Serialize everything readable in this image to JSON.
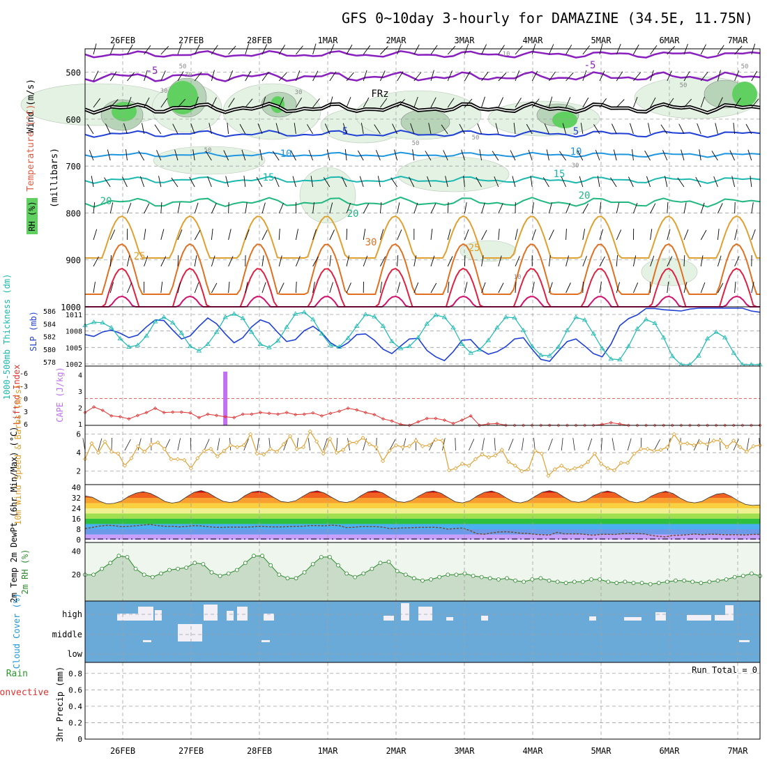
{
  "title": "GFS 0~10day 3-hourly for DAMAZINE (34.5E, 11.75N)",
  "date_labels": [
    "26FEB",
    "27FEB",
    "28FEB",
    "1MAR",
    "2MAR",
    "3MAR",
    "4MAR",
    "5MAR",
    "6MAR",
    "7MAR"
  ],
  "colors": {
    "purple": "#8a1fbf",
    "blue": "#1e3fd6",
    "sky": "#1e96e0",
    "teal": "#1ab8b0",
    "green_teal": "#20b880",
    "orange_light": "#e0a030",
    "orange": "#e07020",
    "red": "#e02040",
    "magenta": "#d0106e",
    "grid": "#a0a0a0",
    "rh_fill": "#a8e0a8",
    "rh_strong": "#60d060",
    "cloud_blue": "#6aaad8"
  },
  "chart_data": [
    {
      "name": "upper_air",
      "type": "area",
      "ylabel_rh": "RH (%)",
      "ylabel_temp": "Temperature (°C)",
      "ylabel_wind": "Wind (m/s)",
      "ylabel_pressure": "(millibars)",
      "y_ticks": [
        500,
        600,
        700,
        800,
        900,
        1000
      ],
      "ylim": [
        450,
        1000
      ],
      "contour_labels": [
        {
          "text": "-5",
          "series": "purple"
        },
        {
          "text": "-5",
          "series": "purple"
        },
        {
          "text": "FRz",
          "series": "black"
        },
        {
          "text": "5",
          "series": "blue"
        },
        {
          "text": "5",
          "series": "blue"
        },
        {
          "text": "10",
          "series": "sky"
        },
        {
          "text": "10",
          "series": "sky"
        },
        {
          "text": "15",
          "series": "teal"
        },
        {
          "text": "15",
          "series": "teal"
        },
        {
          "text": "20",
          "series": "green_teal"
        },
        {
          "text": "20",
          "series": "green_teal"
        },
        {
          "text": "20",
          "series": "green_teal"
        },
        {
          "text": "25",
          "series": "orange_light"
        },
        {
          "text": "25",
          "series": "orange_light"
        },
        {
          "text": "30",
          "series": "orange"
        }
      ],
      "rh_labels": [
        "50",
        "30",
        "50",
        "50",
        "30",
        "50",
        "50",
        "10",
        "30",
        "10",
        "30",
        "50"
      ]
    },
    {
      "name": "slp_thickness",
      "type": "line",
      "ylabel_left": "1000-500mb Thickness (dm)",
      "ylabel_right": "SLP (mb)",
      "thickness_ticks": [
        578,
        580,
        582,
        584,
        586
      ],
      "slp_ticks": [
        1002,
        1005,
        1008,
        1011
      ],
      "thickness": [
        582.3,
        582.0,
        582.7,
        583.0,
        582.5,
        581.8,
        582.2,
        583.5,
        584.6,
        584.5,
        583.0,
        581.6,
        582.1,
        583.6,
        584.9,
        584.0,
        582.4,
        581.0,
        581.8,
        583.5,
        584.6,
        584.1,
        582.6,
        581.2,
        581.5,
        582.9,
        583.6,
        582.6,
        581.0,
        580.2,
        581.0,
        582.3,
        582.4,
        581.4,
        580.0,
        579.3,
        580.5,
        581.6,
        581.7,
        579.8,
        578.8,
        578.2,
        579.6,
        581.4,
        581.5,
        580.0,
        579.2,
        579.6,
        580.4,
        581.6,
        581.8,
        580.0,
        578.4,
        578.1,
        579.7,
        581.2,
        581.6,
        580.5,
        579.3,
        578.8,
        580.8,
        583.7,
        584.8,
        585.4,
        586.4,
        586.4,
        586.2,
        586.1,
        586.0,
        586.3,
        586.6,
        586.7,
        586.7,
        586.9,
        587.0,
        586.8,
        586.0,
        585.8
      ],
      "slp": [
        1009.0,
        1009.6,
        1009.5,
        1008.6,
        1006.6,
        1005.1,
        1005.4,
        1007.1,
        1009.7,
        1010.5,
        1009.5,
        1007.6,
        1005.2,
        1004.4,
        1005.6,
        1007.8,
        1010.5,
        1011.1,
        1010.3,
        1007.8,
        1005.6,
        1005.0,
        1006.2,
        1008.7,
        1011.1,
        1011.4,
        1010.1,
        1007.5,
        1005.4,
        1005.1,
        1006.7,
        1008.9,
        1011.0,
        1010.6,
        1008.9,
        1006.1,
        1004.8,
        1005.2,
        1006.8,
        1009.3,
        1010.9,
        1010.5,
        1008.6,
        1005.6,
        1004.0,
        1004.6,
        1006.3,
        1008.6,
        1010.5,
        1010.4,
        1008.1,
        1005.2,
        1003.6,
        1003.5,
        1005.1,
        1008.1,
        1010.5,
        1010.0,
        1007.5,
        1004.8,
        1002.9,
        1002.8,
        1005.2,
        1008.4,
        1010.1,
        1009.4,
        1006.8,
        1003.4,
        1001.6,
        1001.6,
        1003.5,
        1006.6,
        1007.8,
        1006.8,
        1004.0,
        1001.0,
        1000.6,
        1001.2
      ]
    },
    {
      "name": "stability",
      "type": "bar",
      "ylabel_li": "Lifted Index",
      "ylabel_cape": "CAPE (J/kg)",
      "li_ticks": [
        "-6",
        "-3",
        "0",
        "3",
        "6"
      ],
      "cape_ticks": [
        "1",
        "2",
        "3",
        "4"
      ],
      "cape_value": 4,
      "cape_index": 16,
      "lifted_index": [
        3.3,
        2.0,
        2.8,
        4.1,
        4.3,
        4.8,
        4.0,
        3.3,
        2.3,
        3.3,
        3.2,
        3.2,
        3.4,
        4.5,
        3.7,
        4.0,
        4.3,
        4.5,
        3.7,
        3.7,
        3.3,
        3.5,
        3.7,
        3.3,
        3.8,
        3.7,
        3.4,
        4.1,
        3.5,
        3.0,
        2.3,
        2.7,
        3.3,
        3.8,
        4.8,
        5.3,
        6.1,
        6.5,
        5.5,
        4.7,
        4.7,
        5.1,
        5.9,
        5.1,
        4.1,
        6.9,
        6.0,
        5.9,
        6.3,
        7.1,
        7.1,
        7.3,
        7.7,
        6.3,
        8.2,
        8.2,
        7.1,
        7.8,
        7.7,
        6.1,
        5.7,
        6.0,
        6.4,
        7.6,
        8.4,
        8.2,
        7.7,
        7.9,
        7.4,
        8.2,
        9.0,
        8.8,
        8.5,
        8.8,
        9.0,
        9.2,
        8.5,
        7.7
      ]
    },
    {
      "name": "wind10m",
      "type": "line",
      "ylabel": "10m Wind Speed & Barbs (m/s)",
      "y_ticks": [
        2,
        4,
        6
      ],
      "values": [
        3.3,
        5.0,
        4.0,
        5.2,
        4.1,
        3.9,
        2.6,
        3.4,
        4.7,
        4.1,
        4.9,
        5.1,
        4.4,
        3.3,
        3.3,
        3.2,
        2.3,
        3.4,
        4.2,
        4.4,
        3.6,
        4.2,
        4.8,
        4.6,
        4.8,
        6.0,
        3.9,
        3.8,
        4.4,
        4.1,
        4.9,
        5.8,
        4.4,
        4.6,
        6.3,
        5.2,
        3.9,
        5.5,
        4.0,
        4.3,
        5.1,
        5.1,
        5.6,
        4.9,
        4.6,
        3.1,
        4.2,
        4.8,
        4.6,
        4.7,
        5.3,
        4.7,
        4.8,
        5.4,
        5.3,
        2.1,
        2.3,
        2.8,
        2.6,
        3.3,
        3.8,
        3.5,
        3.7,
        4.3,
        3.0,
        2.6,
        2.0,
        2.2,
        4.2,
        3.9,
        1.5,
        2.2,
        2.6,
        2.1,
        2.3,
        2.5,
        3.0,
        3.9,
        2.8,
        2.3,
        2.1,
        2.9,
        2.9,
        3.9,
        4.4,
        4.4,
        4.2,
        4.3,
        4.6,
        6.0,
        5.0,
        5.0,
        4.8,
        5.1,
        4.9,
        5.3,
        5.3,
        4.6,
        5.3,
        4.6,
        4.1,
        4.7,
        4.8
      ]
    },
    {
      "name": "temp2m",
      "type": "area",
      "ylabel": "2m Temp 2m DewPt (6hr Min/Max) (°C)",
      "y_ticks": [
        0,
        8,
        16,
        24,
        32,
        40
      ],
      "temp": [
        33.5,
        32.5,
        29.5,
        27.4,
        27.8,
        29.5,
        33.1,
        35.6,
        36.7,
        35.4,
        32.6,
        29.3,
        28.0,
        29.0,
        32.8,
        36.2,
        37.6,
        35.8,
        32.3,
        29.4,
        28.5,
        29.5,
        33.6,
        36.5,
        37.3,
        35.7,
        32.3,
        29.2,
        28.6,
        29.7,
        33.2,
        36.3,
        37.4,
        35.6,
        32.3,
        29.3,
        28.5,
        29.8,
        33.6,
        36.7,
        37.5,
        35.8,
        32.3,
        29.3,
        28.6,
        30.1,
        33.5,
        36.3,
        37.3,
        35.7,
        32.3,
        29.0,
        28.2,
        29.7,
        33.4,
        36.2,
        37.3,
        35.5,
        32.1,
        29.0,
        28.2,
        29.6,
        33.1,
        36.3,
        37.5,
        36.1,
        32.6,
        29.4,
        28.6,
        29.8,
        33.5,
        36.0,
        37.3,
        35.9,
        32.5,
        29.4,
        28.3,
        29.6,
        33.3,
        35.7,
        37.0,
        35.3,
        31.8,
        29.0,
        28.2,
        29.3,
        32.3,
        34.8,
        35.5,
        33.2,
        29.7,
        27.0,
        26.2,
        26.6
      ],
      "dewpt": [
        8.5,
        9.4,
        10.4,
        11.0,
        10.8,
        10.0,
        10.2,
        10.6,
        11.2,
        11.7,
        10.7,
        10.3,
        10.3,
        9.8,
        10.2,
        10.7,
        10.5,
        9.9,
        9.5,
        9.4,
        9.7,
        9.6,
        9.6,
        9.8,
        10.2,
        9.9,
        9.8,
        9.8,
        10.0,
        10.2,
        10.3,
        10.8,
        10.8,
        10.6,
        11.1,
        10.7,
        9.3,
        9.5,
        10.0,
        10.0,
        10.0,
        9.6,
        8.5,
        8.8,
        9.0,
        9.2,
        9.4,
        9.4,
        9.5,
        9.2,
        8.1,
        8.6,
        8.9,
        7.1,
        4.6,
        4.2,
        5.1,
        5.9,
        6.1,
        5.7,
        4.9,
        4.8,
        4.1,
        3.8,
        3.6,
        5.6,
        4.5,
        4.5,
        4.5,
        4.0,
        3.4,
        4.1,
        4.1,
        4.0,
        4.6,
        4.8,
        4.7,
        4.5,
        3.3,
        2.6,
        2.2,
        3.3,
        3.4,
        3.8,
        4.4,
        3.8,
        4.2,
        4.1,
        3.8,
        3.8,
        3.8,
        3.6,
        4.1,
        4.0
      ]
    },
    {
      "name": "rh2m",
      "type": "area",
      "ylabel": "2m RH (%)",
      "y_ticks": [
        20,
        40
      ],
      "values": [
        20,
        20,
        25,
        30,
        36,
        35,
        25,
        20,
        18,
        21,
        24,
        25,
        26,
        30,
        29,
        22,
        19,
        21,
        24,
        30,
        36,
        36,
        28,
        20,
        17,
        17,
        22,
        29,
        35,
        35,
        28,
        21,
        18,
        21,
        25,
        30,
        31,
        23,
        20,
        17,
        15,
        16,
        18,
        20,
        20,
        21,
        19,
        18,
        17,
        16,
        17,
        15,
        14,
        16,
        17,
        15,
        14,
        13,
        14,
        14,
        16,
        16,
        14,
        13,
        14,
        13,
        13,
        12,
        13,
        14,
        15,
        15,
        14,
        13,
        14,
        15,
        16,
        18,
        19,
        21,
        19
      ]
    },
    {
      "name": "cloud",
      "type": "heatmap",
      "ylabel": "Cloud Cover (%)",
      "levels": [
        "high",
        "middle",
        "low"
      ]
    },
    {
      "name": "precip",
      "type": "bar",
      "ylabel": "3hr Precip (mm)",
      "ylabel_left": "Total / Rain",
      "ylabel_conv": "Convective",
      "y_ticks": [
        "0",
        "0.2",
        "0.4",
        "0.6",
        "0.8"
      ],
      "run_total": "Run Total = 0",
      "values": []
    }
  ]
}
